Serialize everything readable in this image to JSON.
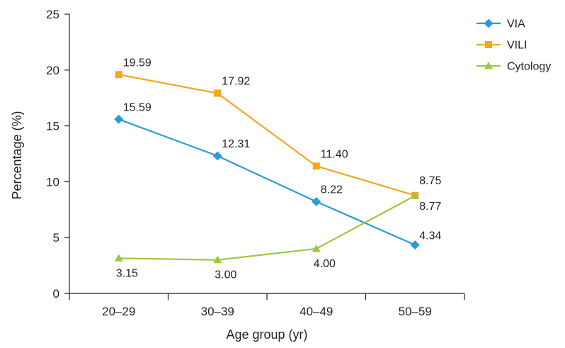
{
  "chart_data": {
    "type": "line",
    "title": "",
    "xlabel": "Age group (yr)",
    "ylabel": "Percentage (%)",
    "categories": [
      "20–29",
      "30–39",
      "40–49",
      "50–59"
    ],
    "ylim": [
      0,
      25
    ],
    "yticks": [
      0,
      5,
      10,
      15,
      20,
      25
    ],
    "grid": false,
    "legend": "top-right",
    "series": [
      {
        "name": "VIA",
        "values": [
          15.59,
          12.31,
          8.22,
          4.34
        ],
        "labels": [
          "15.59",
          "12.31",
          "8.22",
          "4.34"
        ],
        "color": "#2b9bd6",
        "marker": "diamond"
      },
      {
        "name": "VILI",
        "values": [
          19.59,
          17.92,
          11.4,
          8.77
        ],
        "labels": [
          "19.59",
          "17.92",
          "11.40",
          "8.77"
        ],
        "color": "#f5a623",
        "marker": "square"
      },
      {
        "name": "Cytology",
        "values": [
          3.15,
          3.0,
          4.0,
          8.75
        ],
        "labels": [
          "3.15",
          "3.00",
          "4.00",
          "8.75"
        ],
        "color": "#9cc93b",
        "marker": "triangle"
      }
    ]
  }
}
